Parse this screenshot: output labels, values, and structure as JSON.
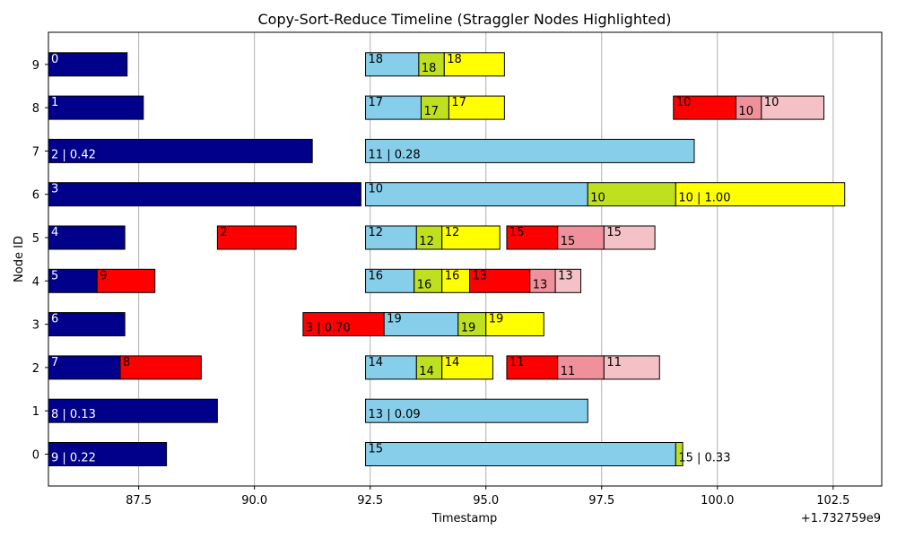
{
  "chart_data": {
    "type": "gantt",
    "title": "Copy-Sort-Reduce Timeline (Straggler Nodes Highlighted)",
    "xlabel": "Timestamp",
    "ylabel": "Node ID",
    "x_offset_label": "+1.732759e9",
    "xlim": [
      85.55,
      103.55
    ],
    "x_ticks": [
      87.5,
      90.0,
      92.5,
      95.0,
      97.5,
      100.0,
      102.5
    ],
    "x_tick_labels": [
      "87.5",
      "90.0",
      "92.5",
      "95.0",
      "97.5",
      "100.0",
      "102.5"
    ],
    "y_ticks": [
      0,
      1,
      2,
      3,
      4,
      5,
      6,
      7,
      8,
      9
    ],
    "y_tick_labels": [
      "0",
      "1",
      "2",
      "3",
      "4",
      "5",
      "6",
      "7",
      "8",
      "9"
    ],
    "straggler_nodes": [
      0,
      1,
      6,
      7
    ],
    "grid": "x",
    "colors": {
      "navy": "#00008b",
      "red": "#ff0000",
      "skyblue": "#87ceeb",
      "lime": "#bfe01e",
      "yellow": "#ffff00",
      "rose": "#f0909a",
      "pink": "#f4c2c6",
      "straggler_tick": "#ff0000",
      "normal_tick": "#000000",
      "grid": "#b0b0b0"
    },
    "segments": [
      {
        "node": 9,
        "start": 85.55,
        "end": 87.25,
        "color": "navy",
        "label": "0"
      },
      {
        "node": 9,
        "start": 92.4,
        "end": 93.55,
        "color": "skyblue",
        "label": "18"
      },
      {
        "node": 9,
        "start": 93.55,
        "end": 94.1,
        "color": "lime",
        "label": "18"
      },
      {
        "node": 9,
        "start": 94.1,
        "end": 95.4,
        "color": "yellow",
        "label": "18"
      },
      {
        "node": 8,
        "start": 85.55,
        "end": 87.6,
        "color": "navy",
        "label": "1"
      },
      {
        "node": 8,
        "start": 92.4,
        "end": 93.6,
        "color": "skyblue",
        "label": "17"
      },
      {
        "node": 8,
        "start": 93.6,
        "end": 94.2,
        "color": "lime",
        "label": "17"
      },
      {
        "node": 8,
        "start": 94.2,
        "end": 95.4,
        "color": "yellow",
        "label": "17"
      },
      {
        "node": 8,
        "start": 99.05,
        "end": 100.4,
        "color": "red",
        "label": "10"
      },
      {
        "node": 8,
        "start": 100.4,
        "end": 100.95,
        "color": "rose",
        "label": "10"
      },
      {
        "node": 8,
        "start": 100.95,
        "end": 102.3,
        "color": "pink",
        "label": "10"
      },
      {
        "node": 7,
        "start": 85.55,
        "end": 91.25,
        "color": "navy",
        "label": "2 | 0.42"
      },
      {
        "node": 7,
        "start": 92.4,
        "end": 99.5,
        "color": "skyblue",
        "label": "11 | 0.28"
      },
      {
        "node": 6,
        "start": 85.55,
        "end": 92.3,
        "color": "navy",
        "label": "3"
      },
      {
        "node": 6,
        "start": 92.4,
        "end": 97.2,
        "color": "skyblue",
        "label": "10"
      },
      {
        "node": 6,
        "start": 97.2,
        "end": 99.1,
        "color": "lime",
        "label": "10"
      },
      {
        "node": 6,
        "start": 99.1,
        "end": 102.75,
        "color": "yellow",
        "label": "10 | 1.00"
      },
      {
        "node": 5,
        "start": 85.55,
        "end": 87.2,
        "color": "navy",
        "label": "4"
      },
      {
        "node": 5,
        "start": 89.2,
        "end": 90.9,
        "color": "red",
        "label": "2"
      },
      {
        "node": 5,
        "start": 92.4,
        "end": 93.5,
        "color": "skyblue",
        "label": "12"
      },
      {
        "node": 5,
        "start": 93.5,
        "end": 94.05,
        "color": "lime",
        "label": "12"
      },
      {
        "node": 5,
        "start": 94.05,
        "end": 95.3,
        "color": "yellow",
        "label": "12"
      },
      {
        "node": 5,
        "start": 95.45,
        "end": 96.55,
        "color": "red",
        "label": "15"
      },
      {
        "node": 5,
        "start": 96.55,
        "end": 97.55,
        "color": "rose",
        "label": "15"
      },
      {
        "node": 5,
        "start": 97.55,
        "end": 98.65,
        "color": "pink",
        "label": "15"
      },
      {
        "node": 4,
        "start": 85.55,
        "end": 86.6,
        "color": "navy",
        "label": "5"
      },
      {
        "node": 4,
        "start": 86.6,
        "end": 87.85,
        "color": "red",
        "label": "9"
      },
      {
        "node": 4,
        "start": 92.4,
        "end": 93.45,
        "color": "skyblue",
        "label": "16"
      },
      {
        "node": 4,
        "start": 93.45,
        "end": 94.05,
        "color": "lime",
        "label": "16"
      },
      {
        "node": 4,
        "start": 94.05,
        "end": 94.65,
        "color": "yellow",
        "label": "16"
      },
      {
        "node": 4,
        "start": 94.65,
        "end": 95.95,
        "color": "red",
        "label": "13"
      },
      {
        "node": 4,
        "start": 95.95,
        "end": 96.5,
        "color": "rose",
        "label": "13"
      },
      {
        "node": 4,
        "start": 96.5,
        "end": 97.05,
        "color": "pink",
        "label": "13"
      },
      {
        "node": 3,
        "start": 85.55,
        "end": 87.2,
        "color": "navy",
        "label": "6"
      },
      {
        "node": 3,
        "start": 91.05,
        "end": 92.8,
        "color": "red",
        "label": "3 | 0.70"
      },
      {
        "node": 3,
        "start": 92.8,
        "end": 94.4,
        "color": "skyblue",
        "label": "19"
      },
      {
        "node": 3,
        "start": 94.4,
        "end": 95.0,
        "color": "lime",
        "label": "19"
      },
      {
        "node": 3,
        "start": 95.0,
        "end": 96.25,
        "color": "yellow",
        "label": "19"
      },
      {
        "node": 2,
        "start": 85.55,
        "end": 87.1,
        "color": "navy",
        "label": "7"
      },
      {
        "node": 2,
        "start": 87.1,
        "end": 88.85,
        "color": "red",
        "label": "8"
      },
      {
        "node": 2,
        "start": 92.4,
        "end": 93.5,
        "color": "skyblue",
        "label": "14"
      },
      {
        "node": 2,
        "start": 93.5,
        "end": 94.05,
        "color": "lime",
        "label": "14"
      },
      {
        "node": 2,
        "start": 94.05,
        "end": 95.15,
        "color": "yellow",
        "label": "14"
      },
      {
        "node": 2,
        "start": 95.45,
        "end": 96.55,
        "color": "red",
        "label": "11"
      },
      {
        "node": 2,
        "start": 96.55,
        "end": 97.55,
        "color": "rose",
        "label": "11"
      },
      {
        "node": 2,
        "start": 97.55,
        "end": 98.75,
        "color": "pink",
        "label": "11"
      },
      {
        "node": 1,
        "start": 85.55,
        "end": 89.2,
        "color": "navy",
        "label": "8 | 0.13"
      },
      {
        "node": 1,
        "start": 92.4,
        "end": 97.2,
        "color": "skyblue",
        "label": "13 | 0.09"
      },
      {
        "node": 0,
        "start": 85.55,
        "end": 88.1,
        "color": "navy",
        "label": "9 | 0.22"
      },
      {
        "node": 0,
        "start": 92.4,
        "end": 99.1,
        "color": "skyblue",
        "label": "15"
      },
      {
        "node": 0,
        "start": 99.1,
        "end": 99.25,
        "color": "lime",
        "label": "15 | 0.33"
      }
    ]
  }
}
